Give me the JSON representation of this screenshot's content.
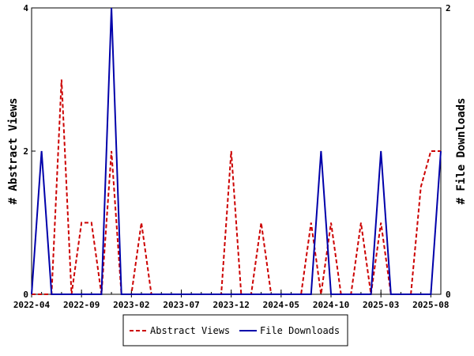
{
  "chart_data": {
    "type": "line",
    "ylabel_left": "# Abstract Views",
    "ylabel_right": "# File Downloads",
    "ylim_left": [
      0,
      4
    ],
    "ylim_right": [
      0,
      2
    ],
    "yticks_left": [
      0,
      2,
      4
    ],
    "yticks_right": [
      0,
      2
    ],
    "grid": false,
    "legend_position": "bottom-center",
    "x_month_count": 41,
    "x_ticks": [
      {
        "index": 0,
        "label": "2022-04"
      },
      {
        "index": 5,
        "label": "2022-09"
      },
      {
        "index": 10,
        "label": "2023-02"
      },
      {
        "index": 15,
        "label": "2023-07"
      },
      {
        "index": 20,
        "label": "2023-12"
      },
      {
        "index": 25,
        "label": "2024-05"
      },
      {
        "index": 30,
        "label": "2024-10"
      },
      {
        "index": 35,
        "label": "2025-03"
      },
      {
        "index": 40,
        "label": "2025-08"
      }
    ],
    "series": [
      {
        "name": "Abstract Views",
        "axis": "left",
        "color": "#cc0000",
        "dash": true,
        "points": [
          [
            0,
            0
          ],
          [
            1,
            0
          ],
          [
            2,
            0
          ],
          [
            3,
            3
          ],
          [
            4,
            0
          ],
          [
            5,
            1
          ],
          [
            6,
            1
          ],
          [
            7,
            0
          ],
          [
            8,
            2
          ],
          [
            9,
            0
          ],
          [
            10,
            0
          ],
          [
            11,
            1
          ],
          [
            12,
            0
          ],
          [
            13,
            0
          ],
          [
            14,
            0
          ],
          [
            15,
            0
          ],
          [
            16,
            0
          ],
          [
            17,
            0
          ],
          [
            18,
            0
          ],
          [
            19,
            0
          ],
          [
            20,
            2
          ],
          [
            21,
            0
          ],
          [
            22,
            0
          ],
          [
            23,
            1
          ],
          [
            24,
            0
          ],
          [
            25,
            0
          ],
          [
            26,
            0
          ],
          [
            27,
            0
          ],
          [
            28,
            1
          ],
          [
            29,
            0
          ],
          [
            30,
            1
          ],
          [
            31,
            0
          ],
          [
            32,
            0
          ],
          [
            33,
            1
          ],
          [
            34,
            0
          ],
          [
            35,
            1
          ],
          [
            36,
            0
          ],
          [
            37,
            0
          ],
          [
            38,
            0
          ],
          [
            39,
            1.5
          ],
          [
            40,
            2
          ],
          [
            41,
            2
          ]
        ]
      },
      {
        "name": "File Downloads",
        "axis": "right",
        "color": "#0000aa",
        "dash": false,
        "points": [
          [
            0,
            0
          ],
          [
            1,
            1
          ],
          [
            2,
            0
          ],
          [
            3,
            0
          ],
          [
            4,
            0
          ],
          [
            5,
            0
          ],
          [
            6,
            0
          ],
          [
            7,
            0
          ],
          [
            8,
            2
          ],
          [
            9,
            0
          ],
          [
            10,
            0
          ],
          [
            11,
            0
          ],
          [
            12,
            0
          ],
          [
            13,
            0
          ],
          [
            14,
            0
          ],
          [
            15,
            0
          ],
          [
            16,
            0
          ],
          [
            17,
            0
          ],
          [
            18,
            0
          ],
          [
            19,
            0
          ],
          [
            20,
            0
          ],
          [
            21,
            0
          ],
          [
            22,
            0
          ],
          [
            23,
            0
          ],
          [
            24,
            0
          ],
          [
            25,
            0
          ],
          [
            26,
            0
          ],
          [
            27,
            0
          ],
          [
            28,
            0
          ],
          [
            29,
            1
          ],
          [
            30,
            0
          ],
          [
            31,
            0
          ],
          [
            32,
            0
          ],
          [
            33,
            0
          ],
          [
            34,
            0
          ],
          [
            35,
            1
          ],
          [
            36,
            0
          ],
          [
            37,
            0
          ],
          [
            38,
            0
          ],
          [
            39,
            0
          ],
          [
            40,
            0
          ],
          [
            41,
            1
          ]
        ]
      }
    ]
  }
}
